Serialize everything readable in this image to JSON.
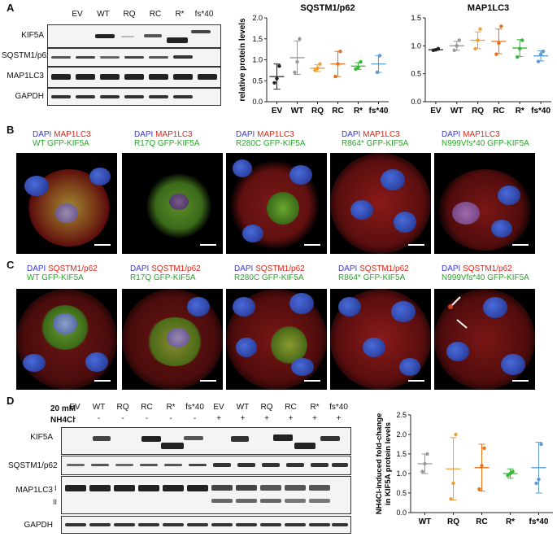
{
  "panels": {
    "A": "A",
    "B": "B",
    "C": "C",
    "D": "D"
  },
  "panelA": {
    "lanes": [
      "EV",
      "WT",
      "RQ",
      "RC",
      "R*",
      "fs*40"
    ],
    "rows": [
      "KIF5A",
      "SQSTM1/p62",
      "MAP1LC3",
      "GAPDH"
    ]
  },
  "panelD": {
    "treatment_line1": "20 mM",
    "treatment_line2": "NH4Cl",
    "lanes": [
      "EV",
      "WT",
      "RQ",
      "RC",
      "R*",
      "fs*40",
      "EV",
      "WT",
      "RQ",
      "RC",
      "R*",
      "fs*40"
    ],
    "signs": [
      "-",
      "-",
      "-",
      "-",
      "-",
      "-",
      "+",
      "+",
      "+",
      "+",
      "+",
      "+"
    ],
    "rows": [
      "KIF5A",
      "SQSTM1/p62",
      "MAP1LC3",
      "GAPDH"
    ],
    "lc3_forms": [
      "I",
      "II"
    ]
  },
  "captions": {
    "B": [
      {
        "dapi": "DAPI",
        "marker": "MAP1LC3",
        "gfp": "WT GFP-KIF5A"
      },
      {
        "dapi": "DAPI",
        "marker": "MAP1LC3",
        "gfp": "R17Q GFP-KIF5A"
      },
      {
        "dapi": "DAPI",
        "marker": "MAP1LC3",
        "gfp": "R280C GFP-KIF5A"
      },
      {
        "dapi": "DAPI",
        "marker": "MAP1LC3",
        "gfp": "R864* GFP-KIF5A"
      },
      {
        "dapi": "DAPI",
        "marker": "MAP1LC3",
        "gfp": "N999Vfs*40 GFP-KIF5A"
      }
    ],
    "C": [
      {
        "dapi": "DAPI",
        "marker": "SQSTM1/p62",
        "gfp": "WT GFP-KIF5A"
      },
      {
        "dapi": "DAPI",
        "marker": "SQSTM1/p62",
        "gfp": "R17Q GFP-KIF5A"
      },
      {
        "dapi": "DAPI",
        "marker": "SQSTM1/p62",
        "gfp": "R280C GFP-KIF5A"
      },
      {
        "dapi": "DAPI",
        "marker": "SQSTM1/p62",
        "gfp": "R864* GFP-KIF5A"
      },
      {
        "dapi": "DAPI",
        "marker": "SQSTM1/p62",
        "gfp": "N999Vfs*40 GFP-KIF5A"
      }
    ]
  },
  "colors": {
    "EV": "#222222",
    "WT": "#999999",
    "RQ": "#f0a030",
    "RC": "#e8701a",
    "R*": "#33bb33",
    "fs*40": "#5b9bd5",
    "dapi": "#3b3bd6",
    "marker": "#e0261b",
    "gfp": "#29a629"
  },
  "chart_data": [
    {
      "type": "scatter",
      "title": "SQSTM1/p62",
      "ylabel": "relative protein levels",
      "categories": [
        "EV",
        "WT",
        "RQ",
        "RC",
        "R*",
        "fs*40"
      ],
      "ylim": [
        0,
        2.0
      ],
      "yticks": [
        "0.0",
        "0.5",
        "1.0",
        "1.5",
        "2.0"
      ],
      "series": [
        {
          "category": "EV",
          "points": [
            0.45,
            0.55,
            0.85
          ],
          "mean": 0.6,
          "sd": 0.3
        },
        {
          "category": "WT",
          "points": [
            0.7,
            0.95,
            1.5
          ],
          "mean": 1.05,
          "sd": 0.4
        },
        {
          "category": "RQ",
          "points": [
            0.75,
            0.8,
            0.9
          ],
          "mean": 0.8,
          "sd": 0.08
        },
        {
          "category": "RC",
          "points": [
            0.6,
            0.9,
            1.2
          ],
          "mean": 0.9,
          "sd": 0.3
        },
        {
          "category": "R*",
          "points": [
            0.78,
            0.82,
            0.95
          ],
          "mean": 0.85,
          "sd": 0.08
        },
        {
          "category": "fs*40",
          "points": [
            0.7,
            1.1
          ],
          "mean": 0.9,
          "sd": 0.2
        }
      ]
    },
    {
      "type": "scatter",
      "title": "MAP1LC3",
      "ylabel": "",
      "categories": [
        "EV",
        "WT",
        "RQ",
        "RC",
        "R*",
        "fs*40"
      ],
      "ylim": [
        0,
        1.5
      ],
      "yticks": [
        "0.0",
        "0.5",
        "1.0",
        "1.5"
      ],
      "series": [
        {
          "category": "EV",
          "points": [
            0.92,
            0.93,
            0.95
          ],
          "mean": 0.93,
          "sd": 0.01
        },
        {
          "category": "WT",
          "points": [
            0.92,
            1.0,
            1.1
          ],
          "mean": 1.0,
          "sd": 0.08
        },
        {
          "category": "RQ",
          "points": [
            0.95,
            1.1,
            1.3
          ],
          "mean": 1.1,
          "sd": 0.15
        },
        {
          "category": "RC",
          "points": [
            0.85,
            1.05,
            1.35
          ],
          "mean": 1.08,
          "sd": 0.22
        },
        {
          "category": "R*",
          "points": [
            0.8,
            0.95,
            1.1
          ],
          "mean": 0.96,
          "sd": 0.15
        },
        {
          "category": "fs*40",
          "points": [
            0.72,
            0.85,
            0.9
          ],
          "mean": 0.82,
          "sd": 0.09
        }
      ]
    },
    {
      "type": "scatter",
      "title": "",
      "ylabel_line1": "NH4Cl-induced fold-change",
      "ylabel_line2": "in KIF5A protein levels",
      "categories": [
        "WT",
        "RQ",
        "RC",
        "R*",
        "fs*40"
      ],
      "ylim": [
        0,
        2.5
      ],
      "yticks": [
        "0.0",
        "0.5",
        "1.0",
        "1.5",
        "2.0",
        "2.5"
      ],
      "series": [
        {
          "category": "WT",
          "points": [
            1.05,
            1.25,
            1.5
          ],
          "mean": 1.25,
          "sd": 0.25
        },
        {
          "category": "RQ",
          "points": [
            0.35,
            0.75,
            2.0
          ],
          "mean": 1.12,
          "sd": 0.8
        },
        {
          "category": "RC",
          "points": [
            0.6,
            1.2,
            1.65
          ],
          "mean": 1.15,
          "sd": 0.6
        },
        {
          "category": "R*",
          "points": [
            0.95,
            1.0,
            1.05
          ],
          "mean": 1.0,
          "sd": 0.12
        },
        {
          "category": "fs*40",
          "points": [
            0.75,
            0.85,
            1.75
          ],
          "mean": 1.15,
          "sd": 0.65
        }
      ]
    }
  ]
}
